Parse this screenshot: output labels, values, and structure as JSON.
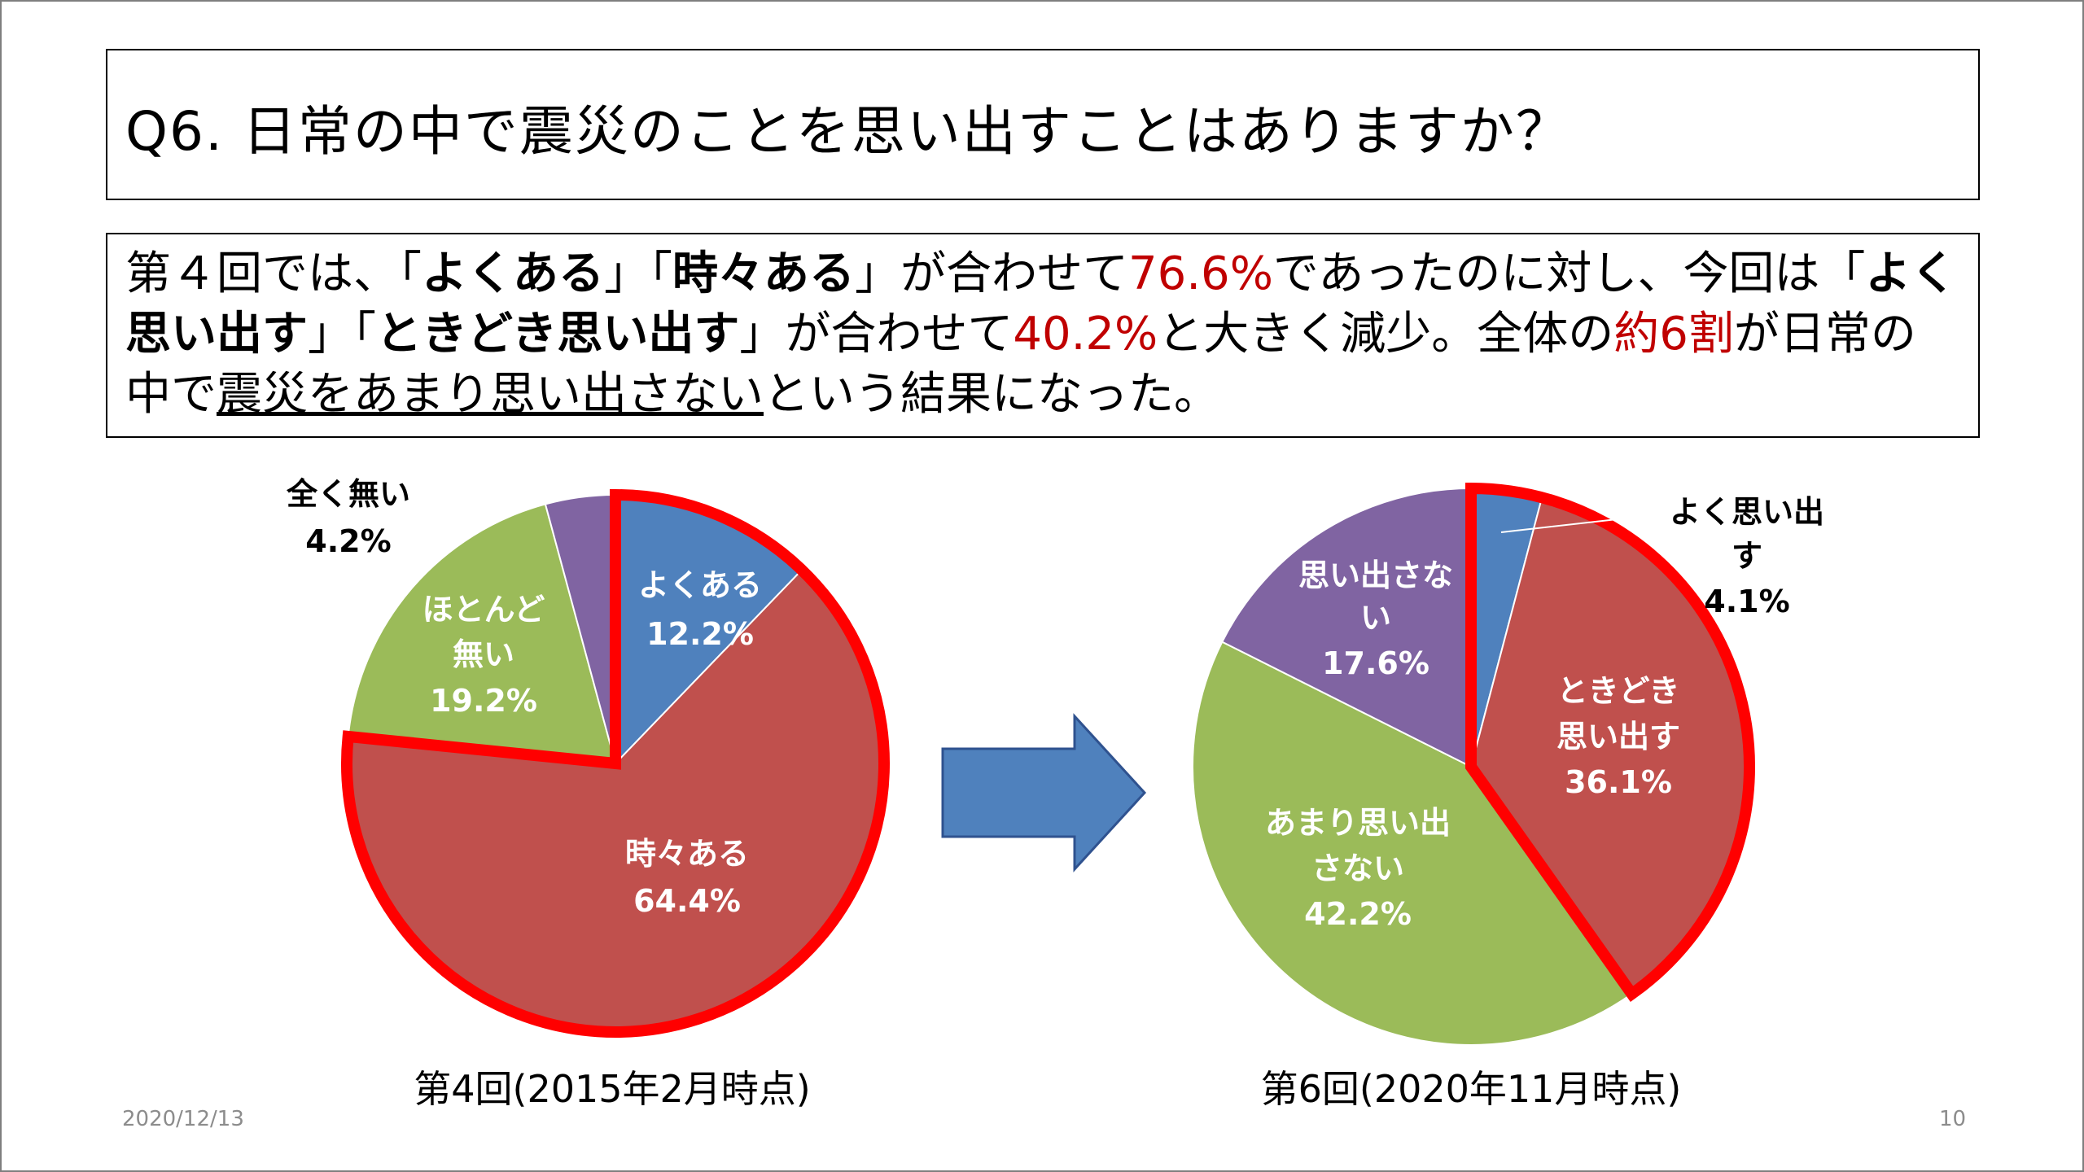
{
  "slide": {
    "title": "Q6.  日常の中で震災のことを思い出すことはありますか？",
    "summary": [
      {
        "t": "第４回では、",
        "s": "n"
      },
      {
        "t": "「",
        "s": "n"
      },
      {
        "t": "よくある",
        "s": "b"
      },
      {
        "t": "」「",
        "s": "n"
      },
      {
        "t": "時々ある",
        "s": "b"
      },
      {
        "t": "」が合わせて",
        "s": "n"
      },
      {
        "t": "76.6%",
        "s": "red"
      },
      {
        "t": "であったのに対し、今回は「",
        "s": "n"
      },
      {
        "t": "よく思い出す",
        "s": "b"
      },
      {
        "t": "」「",
        "s": "n"
      },
      {
        "t": "ときどき思い出す",
        "s": "b"
      },
      {
        "t": "」が合わせて",
        "s": "n"
      },
      {
        "t": "40.2%",
        "s": "red"
      },
      {
        "t": "と大きく減少。全体の",
        "s": "n"
      },
      {
        "t": "約6割",
        "s": "red"
      },
      {
        "t": "が日常の中で",
        "s": "n"
      },
      {
        "t": "震災をあまり思い出さない",
        "s": "u"
      },
      {
        "t": "という結果になった。",
        "s": "n"
      }
    ],
    "footer_date": "2020/12/13",
    "page_number": "10"
  },
  "colors": {
    "blue": "#4f81bd",
    "red": "#c0504d",
    "green": "#9bbb59",
    "purple": "#8064a2",
    "highlight": "#ff0000",
    "arrow": "#4f81bd",
    "label_white": "#ffffff"
  },
  "chart_data": [
    {
      "type": "pie",
      "title": "第4回(2015年2月時点)",
      "highlighted": [
        "よくある",
        "時々ある"
      ],
      "slices": [
        {
          "label": [
            "よくある"
          ],
          "value": 12.2,
          "display": "12.2%",
          "color": "#4f81bd"
        },
        {
          "label": [
            "時々ある"
          ],
          "value": 64.4,
          "display": "64.4%",
          "color": "#c0504d"
        },
        {
          "label": [
            "ほとんど",
            "無い"
          ],
          "value": 19.2,
          "display": "19.2%",
          "color": "#9bbb59"
        },
        {
          "label": [
            "全く無い"
          ],
          "value": 4.2,
          "display": "4.2%",
          "color": "#8064a2"
        }
      ]
    },
    {
      "type": "pie",
      "title": "第6回(2020年11月時点)",
      "highlighted": [
        "よく思い出す",
        "ときどき思い出す"
      ],
      "slices": [
        {
          "label": [
            "よく思い出",
            "す"
          ],
          "value": 4.1,
          "display": "4.1%",
          "color": "#4f81bd"
        },
        {
          "label": [
            "ときどき",
            "思い出す"
          ],
          "value": 36.1,
          "display": "36.1%",
          "color": "#c0504d"
        },
        {
          "label": [
            "あまり思い出",
            "さない"
          ],
          "value": 42.2,
          "display": "42.2%",
          "color": "#9bbb59"
        },
        {
          "label": [
            "思い出さな",
            "い"
          ],
          "value": 17.6,
          "display": "17.6%",
          "color": "#8064a2"
        }
      ]
    }
  ]
}
